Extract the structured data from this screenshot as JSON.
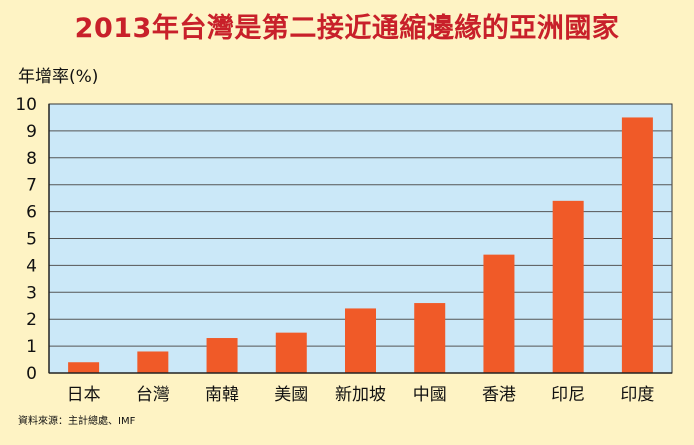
{
  "chart_data": {
    "type": "bar",
    "title": "2013年台灣是第二接近通縮邊緣的亞洲國家",
    "ylabel": "年增率(%)",
    "xlabel": "",
    "source": "資料來源：主計總處、IMF",
    "categories": [
      "日本",
      "台灣",
      "南韓",
      "美國",
      "新加坡",
      "中國",
      "香港",
      "印尼",
      "印度"
    ],
    "values": [
      0.4,
      0.8,
      1.3,
      1.5,
      2.4,
      2.6,
      4.4,
      6.4,
      9.5
    ],
    "ylim": [
      0,
      10
    ],
    "yticks": [
      0,
      1,
      2,
      3,
      4,
      5,
      6,
      7,
      8,
      9,
      10
    ],
    "grid": true,
    "legend": "none",
    "colors": {
      "bar": "#f05a28",
      "plot_background": "#cbe8f8",
      "page_background": "#fef3c4",
      "title": "#c8202a",
      "grid": "#555555"
    }
  }
}
